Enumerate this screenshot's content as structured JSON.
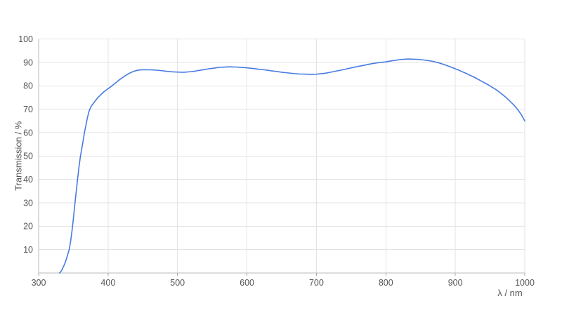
{
  "chart_data": {
    "type": "line",
    "title": "",
    "xlabel": "λ / nm",
    "ylabel": "Transmission / %",
    "xlim": [
      300,
      1000
    ],
    "ylim": [
      0,
      100
    ],
    "x_ticks": [
      300,
      400,
      500,
      600,
      700,
      800,
      900,
      1000
    ],
    "y_ticks": [
      10,
      20,
      30,
      40,
      50,
      60,
      70,
      80,
      90,
      100
    ],
    "grid": true,
    "legend_position": "none",
    "colors": {
      "line": "#477be2",
      "grid": "#e3e3e3",
      "axis": "#b8b8b8",
      "tick": "#a9a9a9",
      "label": "#565656",
      "background": "#ffffff"
    },
    "series": [
      {
        "name": "transmission",
        "points": [
          [
            330,
            0
          ],
          [
            332,
            0.6
          ],
          [
            334,
            1.6
          ],
          [
            336,
            2.9
          ],
          [
            338,
            4.3
          ],
          [
            340,
            6
          ],
          [
            342,
            8
          ],
          [
            344,
            10
          ],
          [
            346,
            13.5
          ],
          [
            348,
            18
          ],
          [
            350,
            23
          ],
          [
            352,
            29
          ],
          [
            354,
            34.5
          ],
          [
            356,
            40
          ],
          [
            358,
            45
          ],
          [
            360,
            49.5
          ],
          [
            362,
            53
          ],
          [
            364,
            56.5
          ],
          [
            366,
            60
          ],
          [
            368,
            63
          ],
          [
            370,
            66
          ],
          [
            372,
            68.6
          ],
          [
            374,
            70.3
          ],
          [
            376,
            71.4
          ],
          [
            378,
            72.2
          ],
          [
            380,
            73
          ],
          [
            385,
            74.9
          ],
          [
            390,
            76.4
          ],
          [
            395,
            77.7
          ],
          [
            400,
            78.8
          ],
          [
            405,
            79.9
          ],
          [
            410,
            81.1
          ],
          [
            415,
            82.3
          ],
          [
            420,
            83.4
          ],
          [
            425,
            84.4
          ],
          [
            430,
            85.3
          ],
          [
            435,
            86
          ],
          [
            440,
            86.5
          ],
          [
            445,
            86.8
          ],
          [
            450,
            86.9
          ],
          [
            455,
            86.9
          ],
          [
            460,
            86.85
          ],
          [
            465,
            86.8
          ],
          [
            470,
            86.7
          ],
          [
            475,
            86.55
          ],
          [
            480,
            86.4
          ],
          [
            485,
            86.2
          ],
          [
            490,
            86.05
          ],
          [
            495,
            85.95
          ],
          [
            500,
            85.9
          ],
          [
            505,
            85.85
          ],
          [
            510,
            85.85
          ],
          [
            515,
            85.95
          ],
          [
            520,
            86.1
          ],
          [
            525,
            86.3
          ],
          [
            530,
            86.55
          ],
          [
            535,
            86.8
          ],
          [
            540,
            87.05
          ],
          [
            545,
            87.3
          ],
          [
            550,
            87.5
          ],
          [
            555,
            87.7
          ],
          [
            560,
            87.9
          ],
          [
            565,
            88
          ],
          [
            570,
            88.1
          ],
          [
            575,
            88.15
          ],
          [
            580,
            88.1
          ],
          [
            585,
            88.05
          ],
          [
            590,
            87.95
          ],
          [
            595,
            87.85
          ],
          [
            600,
            87.7
          ],
          [
            605,
            87.55
          ],
          [
            610,
            87.4
          ],
          [
            615,
            87.2
          ],
          [
            620,
            87
          ],
          [
            625,
            86.85
          ],
          [
            630,
            86.65
          ],
          [
            635,
            86.45
          ],
          [
            640,
            86.25
          ],
          [
            645,
            86.05
          ],
          [
            650,
            85.85
          ],
          [
            655,
            85.65
          ],
          [
            660,
            85.5
          ],
          [
            665,
            85.35
          ],
          [
            670,
            85.2
          ],
          [
            675,
            85.1
          ],
          [
            680,
            85.05
          ],
          [
            685,
            85
          ],
          [
            690,
            84.95
          ],
          [
            695,
            84.95
          ],
          [
            700,
            85
          ],
          [
            705,
            85.15
          ],
          [
            710,
            85.3
          ],
          [
            715,
            85.55
          ],
          [
            720,
            85.8
          ],
          [
            725,
            86.1
          ],
          [
            730,
            86.4
          ],
          [
            735,
            86.7
          ],
          [
            740,
            87
          ],
          [
            745,
            87.35
          ],
          [
            750,
            87.7
          ],
          [
            755,
            88
          ],
          [
            760,
            88.3
          ],
          [
            765,
            88.6
          ],
          [
            770,
            88.9
          ],
          [
            775,
            89.2
          ],
          [
            780,
            89.5
          ],
          [
            785,
            89.75
          ],
          [
            790,
            89.95
          ],
          [
            795,
            90.1
          ],
          [
            800,
            90.25
          ],
          [
            805,
            90.55
          ],
          [
            810,
            90.8
          ],
          [
            815,
            91
          ],
          [
            820,
            91.2
          ],
          [
            825,
            91.35
          ],
          [
            830,
            91.45
          ],
          [
            835,
            91.45
          ],
          [
            840,
            91.4
          ],
          [
            845,
            91.35
          ],
          [
            850,
            91.2
          ],
          [
            855,
            91.05
          ],
          [
            860,
            90.85
          ],
          [
            865,
            90.6
          ],
          [
            870,
            90.3
          ],
          [
            875,
            89.95
          ],
          [
            880,
            89.5
          ],
          [
            885,
            89
          ],
          [
            890,
            88.45
          ],
          [
            895,
            87.9
          ],
          [
            900,
            87.3
          ],
          [
            905,
            86.7
          ],
          [
            910,
            86.05
          ],
          [
            915,
            85.4
          ],
          [
            920,
            84.7
          ],
          [
            925,
            84
          ],
          [
            930,
            83.25
          ],
          [
            935,
            82.45
          ],
          [
            940,
            81.65
          ],
          [
            945,
            80.85
          ],
          [
            950,
            80
          ],
          [
            955,
            79.1
          ],
          [
            960,
            78.1
          ],
          [
            965,
            77
          ],
          [
            970,
            75.8
          ],
          [
            975,
            74.5
          ],
          [
            980,
            73.1
          ],
          [
            985,
            71.6
          ],
          [
            990,
            69.8
          ],
          [
            995,
            67.7
          ],
          [
            1000,
            65
          ]
        ]
      }
    ]
  }
}
